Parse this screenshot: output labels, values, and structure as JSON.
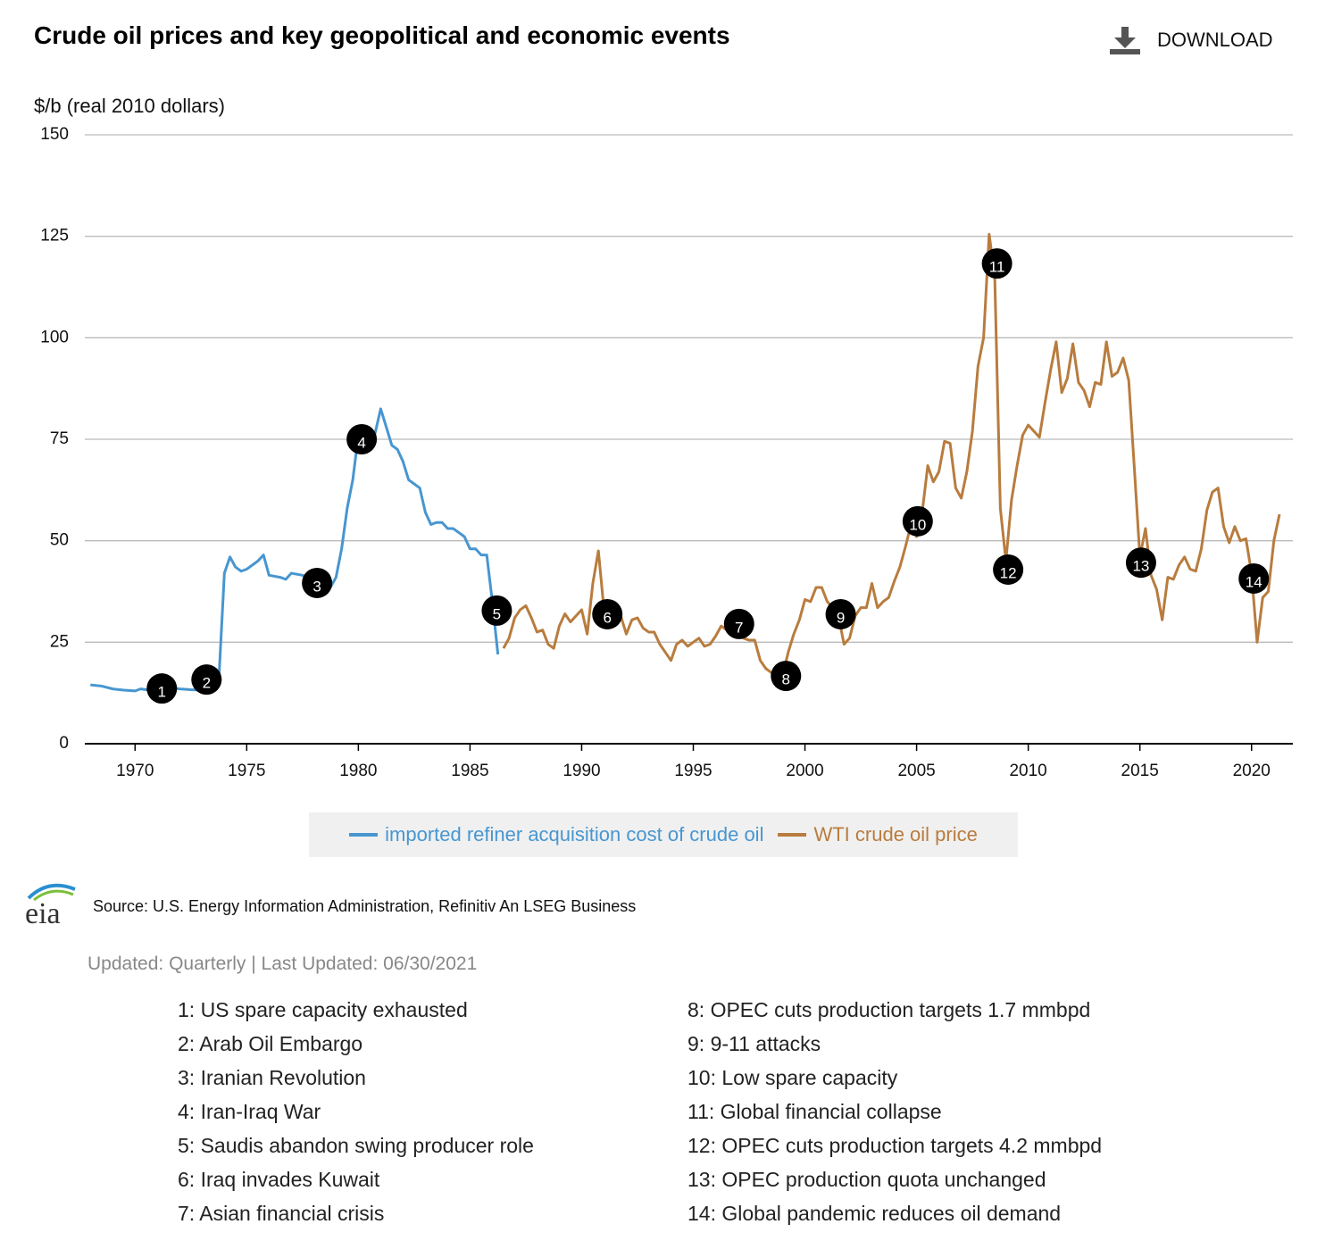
{
  "title": "Crude oil prices and key geopolitical and economic events",
  "download_label": "DOWNLOAD",
  "chart_data": {
    "type": "line",
    "y_label": "$/b (real 2010 dollars)",
    "xlim": [
      1967.75,
      2021.85
    ],
    "xticks": [
      1970,
      1975,
      1980,
      1985,
      1990,
      1995,
      2000,
      2005,
      2010,
      2015,
      2020
    ],
    "ylim": [
      0,
      150
    ],
    "yticks": [
      0,
      25,
      50,
      75,
      100,
      125,
      150
    ],
    "grid": true,
    "series": [
      {
        "name": "imported refiner acquisition cost of crude oil",
        "color": "#4796d0",
        "x": [
          1968,
          1968.5,
          1969,
          1969.5,
          1970,
          1970.25,
          1970.5,
          1971,
          1971.5,
          1972,
          1972.5,
          1973,
          1973.5,
          1973.75,
          1974,
          1974.25,
          1974.5,
          1974.75,
          1975,
          1975.5,
          1975.75,
          1976,
          1976.5,
          1976.75,
          1977,
          1977.5,
          1978,
          1978.5,
          1978.75,
          1979,
          1979.25,
          1979.5,
          1979.75,
          1980,
          1980.25,
          1980.5,
          1980.75,
          1981,
          1981.25,
          1981.5,
          1981.75,
          1982,
          1982.25,
          1982.5,
          1982.75,
          1983,
          1983.25,
          1983.5,
          1983.75,
          1984,
          1984.25,
          1984.5,
          1984.75,
          1985,
          1985.25,
          1985.5,
          1985.75,
          1986,
          1986.25
        ],
        "values": [
          14.5,
          14.2,
          13.5,
          13.2,
          13.0,
          13.5,
          13.3,
          13.5,
          13.8,
          13.5,
          13.3,
          13.2,
          15.5,
          15.5,
          42,
          46,
          43.5,
          42.5,
          43,
          45,
          46.5,
          41.5,
          41,
          40.5,
          42,
          41.5,
          40,
          38.5,
          38.5,
          41,
          48,
          58,
          65,
          76,
          78,
          77,
          76.5,
          82.5,
          78,
          73.5,
          72.5,
          69.5,
          65,
          64,
          63,
          57,
          54,
          54.5,
          54.5,
          53,
          53,
          52,
          51,
          48,
          48,
          46.5,
          46.5,
          35,
          22
        ]
      },
      {
        "name": "WTI crude oil price",
        "color": "#b87c3e",
        "x": [
          1986.5,
          1986.75,
          1987,
          1987.25,
          1987.5,
          1987.75,
          1988,
          1988.25,
          1988.5,
          1988.75,
          1989,
          1989.25,
          1989.5,
          1989.75,
          1990,
          1990.25,
          1990.5,
          1990.75,
          1991,
          1991.25,
          1991.5,
          1991.75,
          1992,
          1992.25,
          1992.5,
          1992.75,
          1993,
          1993.25,
          1993.5,
          1993.75,
          1994,
          1994.25,
          1994.5,
          1994.75,
          1995,
          1995.25,
          1995.5,
          1995.75,
          1996,
          1996.25,
          1996.5,
          1996.75,
          1997,
          1997.25,
          1997.5,
          1997.75,
          1998,
          1998.25,
          1998.5,
          1998.75,
          1999,
          1999.25,
          1999.5,
          1999.75,
          2000,
          2000.25,
          2000.5,
          2000.75,
          2001,
          2001.25,
          2001.5,
          2001.75,
          2002,
          2002.25,
          2002.5,
          2002.75,
          2003,
          2003.25,
          2003.5,
          2003.75,
          2004,
          2004.25,
          2004.5,
          2004.75,
          2005,
          2005.25,
          2005.5,
          2005.75,
          2006,
          2006.25,
          2006.5,
          2006.75,
          2007,
          2007.25,
          2007.5,
          2007.75,
          2008,
          2008.25,
          2008.5,
          2008.75,
          2009,
          2009.25,
          2009.5,
          2009.75,
          2010,
          2010.25,
          2010.5,
          2010.75,
          2011,
          2011.25,
          2011.5,
          2011.75,
          2012,
          2012.25,
          2012.5,
          2012.75,
          2013,
          2013.25,
          2013.5,
          2013.75,
          2014,
          2014.25,
          2014.5,
          2014.75,
          2015,
          2015.25,
          2015.5,
          2015.75,
          2016,
          2016.25,
          2016.5,
          2016.75,
          2017,
          2017.25,
          2017.5,
          2017.75,
          2018,
          2018.25,
          2018.5,
          2018.75,
          2019,
          2019.25,
          2019.5,
          2019.75,
          2020,
          2020.25,
          2020.5,
          2020.75,
          2021,
          2021.25
        ],
        "values": [
          23.5,
          26,
          31,
          33,
          34,
          31,
          27.5,
          28,
          24.5,
          23.5,
          29,
          32,
          30,
          31.5,
          33,
          27,
          39.5,
          47.5,
          33,
          31.5,
          32,
          31.5,
          27,
          30.5,
          31,
          28.5,
          27.5,
          27.5,
          24.5,
          22.5,
          20.5,
          24.5,
          25.5,
          24,
          25,
          26,
          24,
          24.5,
          26.5,
          29,
          28,
          31,
          28,
          26,
          25.5,
          25.5,
          20.5,
          18.5,
          17.5,
          15.5,
          17,
          22.5,
          27,
          30.5,
          35.5,
          35,
          38.5,
          38.5,
          35,
          33.5,
          31.5,
          24.5,
          26,
          31.5,
          33.5,
          33.5,
          39.5,
          33.5,
          35,
          36,
          40,
          43.5,
          48.5,
          54,
          51,
          57,
          68.5,
          64.5,
          67,
          74.5,
          74,
          63,
          60.5,
          67,
          77,
          93,
          100,
          125.5,
          115,
          58,
          45,
          60,
          68.5,
          76,
          78.5,
          77,
          75.5,
          84,
          92,
          99,
          86.5,
          90,
          98.5,
          89,
          87,
          83,
          89,
          88.5,
          99,
          90.5,
          91.5,
          95,
          89.5,
          68,
          46,
          53,
          41.5,
          38,
          30.5,
          41,
          40.5,
          44,
          46,
          43,
          42.5,
          48,
          57.5,
          62,
          63,
          53.5,
          49.5,
          53.5,
          50,
          50.5,
          42,
          25,
          36,
          37.5,
          50,
          56.5
        ]
      }
    ],
    "events": [
      {
        "label": "1",
        "x": 1971.2,
        "y": 13.6
      },
      {
        "label": "2",
        "x": 1973.2,
        "y": 15.8
      },
      {
        "label": "3",
        "x": 1978.15,
        "y": 39.6
      },
      {
        "label": "4",
        "x": 1980.15,
        "y": 75
      },
      {
        "label": "5",
        "x": 1986.2,
        "y": 32.8
      },
      {
        "label": "6",
        "x": 1991.15,
        "y": 31.9
      },
      {
        "label": "7",
        "x": 1997.05,
        "y": 29.5
      },
      {
        "label": "8",
        "x": 1999.15,
        "y": 16.7
      },
      {
        "label": "9",
        "x": 2001.6,
        "y": 31.9
      },
      {
        "label": "10",
        "x": 2005.05,
        "y": 54.8
      },
      {
        "label": "11",
        "x": 2008.6,
        "y": 118.3
      },
      {
        "label": "12",
        "x": 2009.1,
        "y": 42.9
      },
      {
        "label": "13",
        "x": 2015.05,
        "y": 44.6
      },
      {
        "label": "14",
        "x": 2020.1,
        "y": 40.7
      }
    ]
  },
  "logo_text": "eia",
  "source": "Source: U.S. Energy Information Administration, Refinitiv An LSEG Business",
  "updated": "Updated: Quarterly | Last Updated: 06/30/2021",
  "notes": [
    "1: US spare capacity exhausted",
    "2: Arab Oil Embargo",
    "3: Iranian Revolution",
    "4: Iran-Iraq War",
    "5: Saudis abandon swing producer role",
    "6: Iraq invades Kuwait",
    "7: Asian financial crisis",
    "8: OPEC cuts production targets 1.7 mmbpd",
    "9: 9-11 attacks",
    "10: Low spare capacity",
    "11: Global financial collapse",
    "12: OPEC cuts production targets 4.2 mmbpd",
    "13: OPEC production quota unchanged",
    "14: Global pandemic reduces oil demand"
  ]
}
